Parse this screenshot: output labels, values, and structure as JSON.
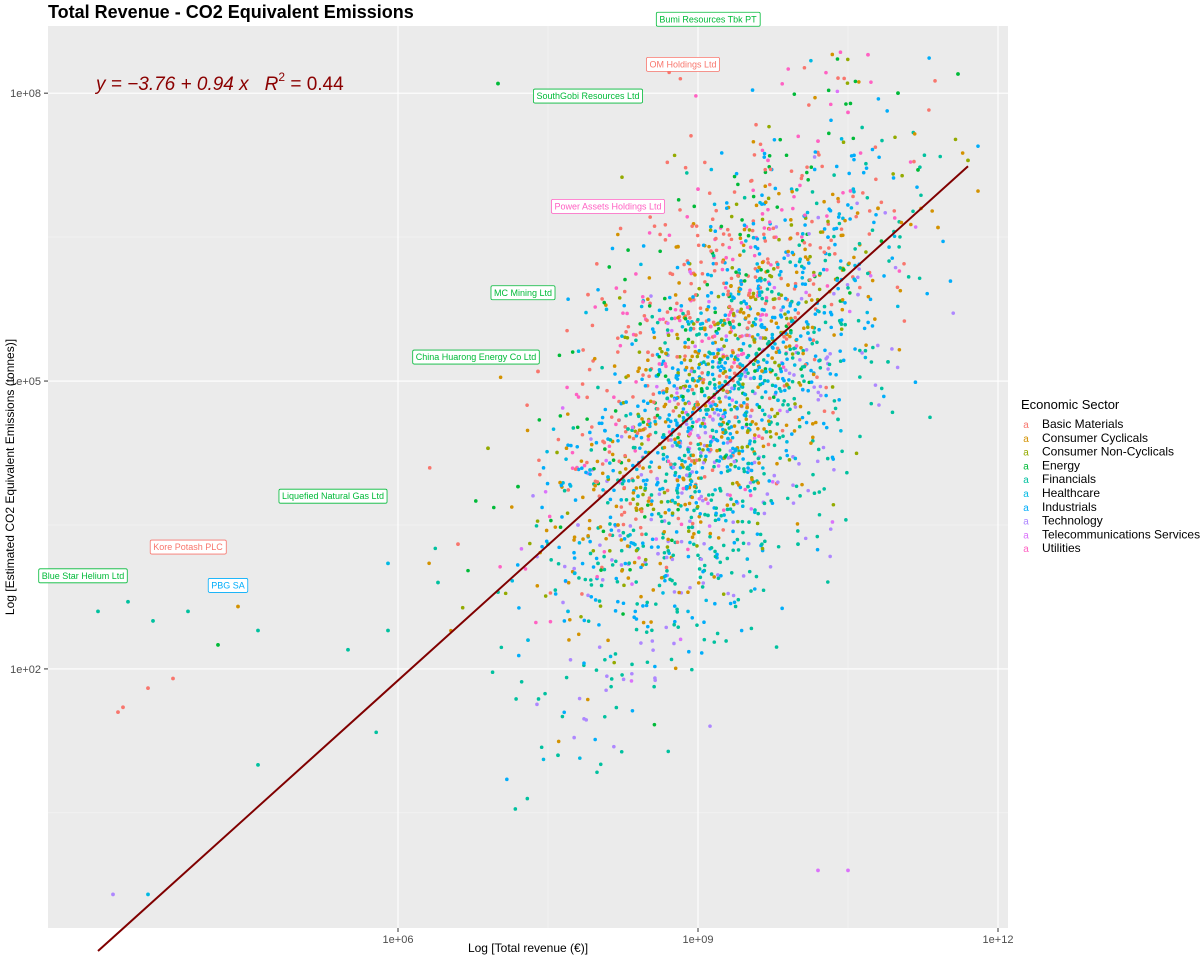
{
  "chart_data": {
    "type": "scatter",
    "title": "Total Revenue - CO2 Equivalent Emissions",
    "xlabel": "Log [Total revenue (€)]",
    "ylabel": "Log [Estimated CO2 Equivalent Emissions (tonnes)]",
    "x_scale": "log10",
    "y_scale": "log10",
    "xlim_log10": [
      2.5,
      12.1
    ],
    "ylim_log10": [
      -0.7,
      8.7
    ],
    "grid": true,
    "x_ticks": [
      {
        "log10": 6,
        "label": "1e+06"
      },
      {
        "log10": 9,
        "label": "1e+09"
      },
      {
        "log10": 12,
        "label": "1e+12"
      }
    ],
    "y_ticks": [
      {
        "log10": 2,
        "label": "1e+02"
      },
      {
        "log10": 5,
        "label": "1e+05"
      },
      {
        "log10": 8,
        "label": "1e+08"
      }
    ],
    "regression": {
      "intercept_log10": -3.76,
      "slope": 0.94,
      "r_squared": 0.44,
      "color": "#800000",
      "x_range_log10": [
        3.0,
        11.7
      ]
    },
    "equation_label": {
      "y_eq": "y = −3.76 + 0.94 x",
      "r2_sym": "R",
      "r2_sup": "2",
      "r2_val": " = 0.44"
    },
    "legend": {
      "title": "Economic Sector",
      "position": "right",
      "entries": [
        {
          "name": "Basic Materials",
          "color": "#F8766D"
        },
        {
          "name": "Consumer Cyclicals",
          "color": "#D39200"
        },
        {
          "name": "Consumer Non-Cyclicals",
          "color": "#93AA00"
        },
        {
          "name": "Energy",
          "color": "#00BA38"
        },
        {
          "name": "Financials",
          "color": "#00C19F"
        },
        {
          "name": "Healthcare",
          "color": "#00B9E3"
        },
        {
          "name": "Industrials",
          "color": "#00ADFA"
        },
        {
          "name": "Technology",
          "color": "#AE87FF"
        },
        {
          "name": "Telecommunications Services",
          "color": "#DB72FB"
        },
        {
          "name": "Utilities",
          "color": "#FF61C3"
        }
      ]
    },
    "annotations": [
      {
        "label": "Bumi Resources Tbk PT",
        "x_log10": 9.1,
        "y_log10": 8.77,
        "sector": "Energy"
      },
      {
        "label": "OM Holdings Ltd",
        "x_log10": 8.85,
        "y_log10": 8.3,
        "sector": "Basic Materials"
      },
      {
        "label": "SouthGobi Resources Ltd",
        "x_log10": 7.9,
        "y_log10": 7.97,
        "sector": "Energy"
      },
      {
        "label": "Power Assets Holdings Ltd",
        "x_log10": 8.1,
        "y_log10": 6.82,
        "sector": "Utilities"
      },
      {
        "label": "MC Mining Ltd",
        "x_log10": 7.25,
        "y_log10": 5.92,
        "sector": "Energy"
      },
      {
        "label": "China Huarong Energy Co Ltd",
        "x_log10": 6.78,
        "y_log10": 5.25,
        "sector": "Energy"
      },
      {
        "label": "Liquefied Natural Gas Ltd",
        "x_log10": 5.35,
        "y_log10": 3.8,
        "sector": "Energy"
      },
      {
        "label": "Kore Potash PLC",
        "x_log10": 3.9,
        "y_log10": 3.27,
        "sector": "Basic Materials"
      },
      {
        "label": "Blue Star Helium Ltd",
        "x_log10": 2.85,
        "y_log10": 2.97,
        "sector": "Energy"
      },
      {
        "label": "PBG SA",
        "x_log10": 4.3,
        "y_log10": 2.87,
        "sector": "Industrials"
      }
    ],
    "points": [
      {
        "x": 3.0,
        "y": 2.6,
        "sector": "Financials"
      },
      {
        "x": 3.3,
        "y": 2.7,
        "sector": "Financials"
      },
      {
        "x": 3.2,
        "y": 1.55,
        "sector": "Basic Materials"
      },
      {
        "x": 3.25,
        "y": 1.6,
        "sector": "Basic Materials"
      },
      {
        "x": 3.5,
        "y": 1.8,
        "sector": "Basic Materials"
      },
      {
        "x": 3.75,
        "y": 1.9,
        "sector": "Basic Materials"
      },
      {
        "x": 3.15,
        "y": -0.35,
        "sector": "Technology"
      },
      {
        "x": 3.5,
        "y": -0.35,
        "sector": "Healthcare"
      },
      {
        "x": 3.55,
        "y": 2.5,
        "sector": "Financials"
      },
      {
        "x": 3.9,
        "y": 2.6,
        "sector": "Financials"
      },
      {
        "x": 4.4,
        "y": 2.65,
        "sector": "Consumer Cyclicals"
      },
      {
        "x": 4.2,
        "y": 2.25,
        "sector": "Energy"
      },
      {
        "x": 4.6,
        "y": 2.4,
        "sector": "Financials"
      },
      {
        "x": 4.6,
        "y": 1.0,
        "sector": "Financials"
      },
      {
        "x": 5.5,
        "y": 2.2,
        "sector": "Financials"
      },
      {
        "x": 5.9,
        "y": 2.4,
        "sector": "Financials"
      },
      {
        "x": 5.9,
        "y": 3.1,
        "sector": "Healthcare"
      },
      {
        "x": 6.4,
        "y": 2.9,
        "sector": "Financials"
      },
      {
        "x": 6.6,
        "y": 3.3,
        "sector": "Basic Materials"
      },
      {
        "x": 6.9,
        "y": 4.3,
        "sector": "Consumer Non-Cyclicals"
      },
      {
        "x": 7.0,
        "y": 2.8,
        "sector": "Financials"
      },
      {
        "x": 7.2,
        "y": 3.9,
        "sector": "Energy"
      },
      {
        "x": 7.3,
        "y": 2.3,
        "sector": "Healthcare"
      },
      {
        "x": 7.4,
        "y": 5.1,
        "sector": "Basic Materials"
      },
      {
        "x": 7.5,
        "y": 3.3,
        "sector": "Financials"
      },
      {
        "x": 7.6,
        "y": 1.1,
        "sector": "Financials"
      },
      {
        "x": 7.7,
        "y": 2.6,
        "sector": "Healthcare"
      },
      {
        "x": 7.8,
        "y": 3.5,
        "sector": "Technology"
      },
      {
        "x": 7.9,
        "y": 5.9,
        "sector": "Basic Materials"
      },
      {
        "x": 8.0,
        "y": 3.1,
        "sector": "Financials"
      },
      {
        "x": 8.1,
        "y": 4.0,
        "sector": "Healthcare"
      },
      {
        "x": 8.2,
        "y": 3.5,
        "sector": "Consumer Cyclicals"
      },
      {
        "x": 8.3,
        "y": 4.5,
        "sector": "Financials"
      },
      {
        "x": 8.4,
        "y": 3.8,
        "sector": "Healthcare"
      },
      {
        "x": 8.5,
        "y": 5.3,
        "sector": "Basic Materials"
      },
      {
        "x": 8.6,
        "y": 3.2,
        "sector": "Technology"
      },
      {
        "x": 8.7,
        "y": 4.6,
        "sector": "Healthcare"
      },
      {
        "x": 8.8,
        "y": 6.4,
        "sector": "Consumer Cyclicals"
      },
      {
        "x": 8.9,
        "y": 4.1,
        "sector": "Financials"
      },
      {
        "x": 9.0,
        "y": 5.0,
        "sector": "Healthcare"
      },
      {
        "x": 9.0,
        "y": 7.0,
        "sector": "Utilities"
      },
      {
        "x": 9.1,
        "y": 3.6,
        "sector": "Financials"
      },
      {
        "x": 9.2,
        "y": 5.6,
        "sector": "Consumer Non-Cyclicals"
      },
      {
        "x": 9.3,
        "y": 4.4,
        "sector": "Healthcare"
      },
      {
        "x": 9.4,
        "y": 6.1,
        "sector": "Basic Materials"
      },
      {
        "x": 9.5,
        "y": 3.9,
        "sector": "Financials"
      },
      {
        "x": 9.6,
        "y": 5.2,
        "sector": "Industrials"
      },
      {
        "x": 9.7,
        "y": 7.3,
        "sector": "Utilities"
      },
      {
        "x": 9.8,
        "y": 4.8,
        "sector": "Healthcare"
      },
      {
        "x": 9.9,
        "y": 6.0,
        "sector": "Consumer Cyclicals"
      },
      {
        "x": 10.0,
        "y": 3.3,
        "sector": "Financials"
      },
      {
        "x": 10.1,
        "y": 5.5,
        "sector": "Healthcare"
      },
      {
        "x": 10.2,
        "y": 7.5,
        "sector": "Utilities"
      },
      {
        "x": 10.3,
        "y": 6.5,
        "sector": "Industrials"
      },
      {
        "x": 10.4,
        "y": 4.6,
        "sector": "Financials"
      },
      {
        "x": 10.5,
        "y": 7.8,
        "sector": "Utilities"
      },
      {
        "x": 10.6,
        "y": 5.9,
        "sector": "Technology"
      },
      {
        "x": 10.7,
        "y": 8.4,
        "sector": "Utilities"
      },
      {
        "x": 10.8,
        "y": 6.8,
        "sector": "Consumer Cyclicals"
      },
      {
        "x": 10.9,
        "y": 5.2,
        "sector": "Financials"
      },
      {
        "x": 11.0,
        "y": 8.0,
        "sector": "Energy"
      },
      {
        "x": 11.2,
        "y": 7.2,
        "sector": "Energy"
      },
      {
        "x": 11.4,
        "y": 6.6,
        "sector": "Consumer Cyclicals"
      },
      {
        "x": 11.6,
        "y": 8.2,
        "sector": "Energy"
      },
      {
        "x": 11.7,
        "y": 7.3,
        "sector": "Consumer Non-Cyclicals"
      },
      {
        "x": 10.5,
        "y": -0.1,
        "sector": "Telecommunications Services"
      },
      {
        "x": 10.2,
        "y": -0.1,
        "sector": "Telecommunications Services"
      },
      {
        "x": 7.0,
        "y": 8.1,
        "sector": "Energy"
      },
      {
        "x": 8.9,
        "y": 8.3,
        "sector": "Energy"
      },
      {
        "x": 9.6,
        "y": 5.7,
        "sector": "Consumer Cyclicals"
      },
      {
        "x": 9.3,
        "y": 5.9,
        "sector": "Basic Materials"
      },
      {
        "x": 8.9,
        "y": 4.9,
        "sector": "Healthcare"
      },
      {
        "x": 9.1,
        "y": 4.7,
        "sector": "Financials"
      }
    ]
  }
}
